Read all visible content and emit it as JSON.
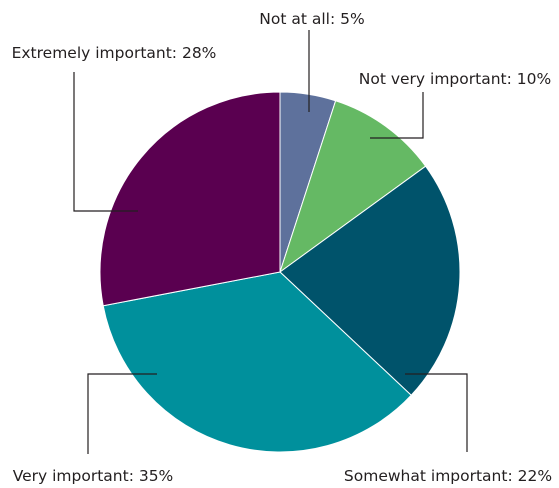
{
  "chart_data": {
    "type": "pie",
    "title": "",
    "slices": [
      {
        "label": "Not at all",
        "value": 5,
        "display": "Not at all: 5%",
        "color": "#5e719c"
      },
      {
        "label": "Not very important",
        "value": 10,
        "display": "Not very important: 10%",
        "color": "#65b964"
      },
      {
        "label": "Somewhat important",
        "value": 22,
        "display": "Somewhat important: 22%",
        "color": "#00536b"
      },
      {
        "label": "Very important",
        "value": 35,
        "display": "Very important: 35%",
        "color": "#00909c"
      },
      {
        "label": "Extremely important",
        "value": 28,
        "display": "Extremely important: 28%",
        "color": "#5a0050"
      }
    ],
    "start_angle": "12 o'clock",
    "direction": "clockwise",
    "legend": "none (callout labels)"
  }
}
